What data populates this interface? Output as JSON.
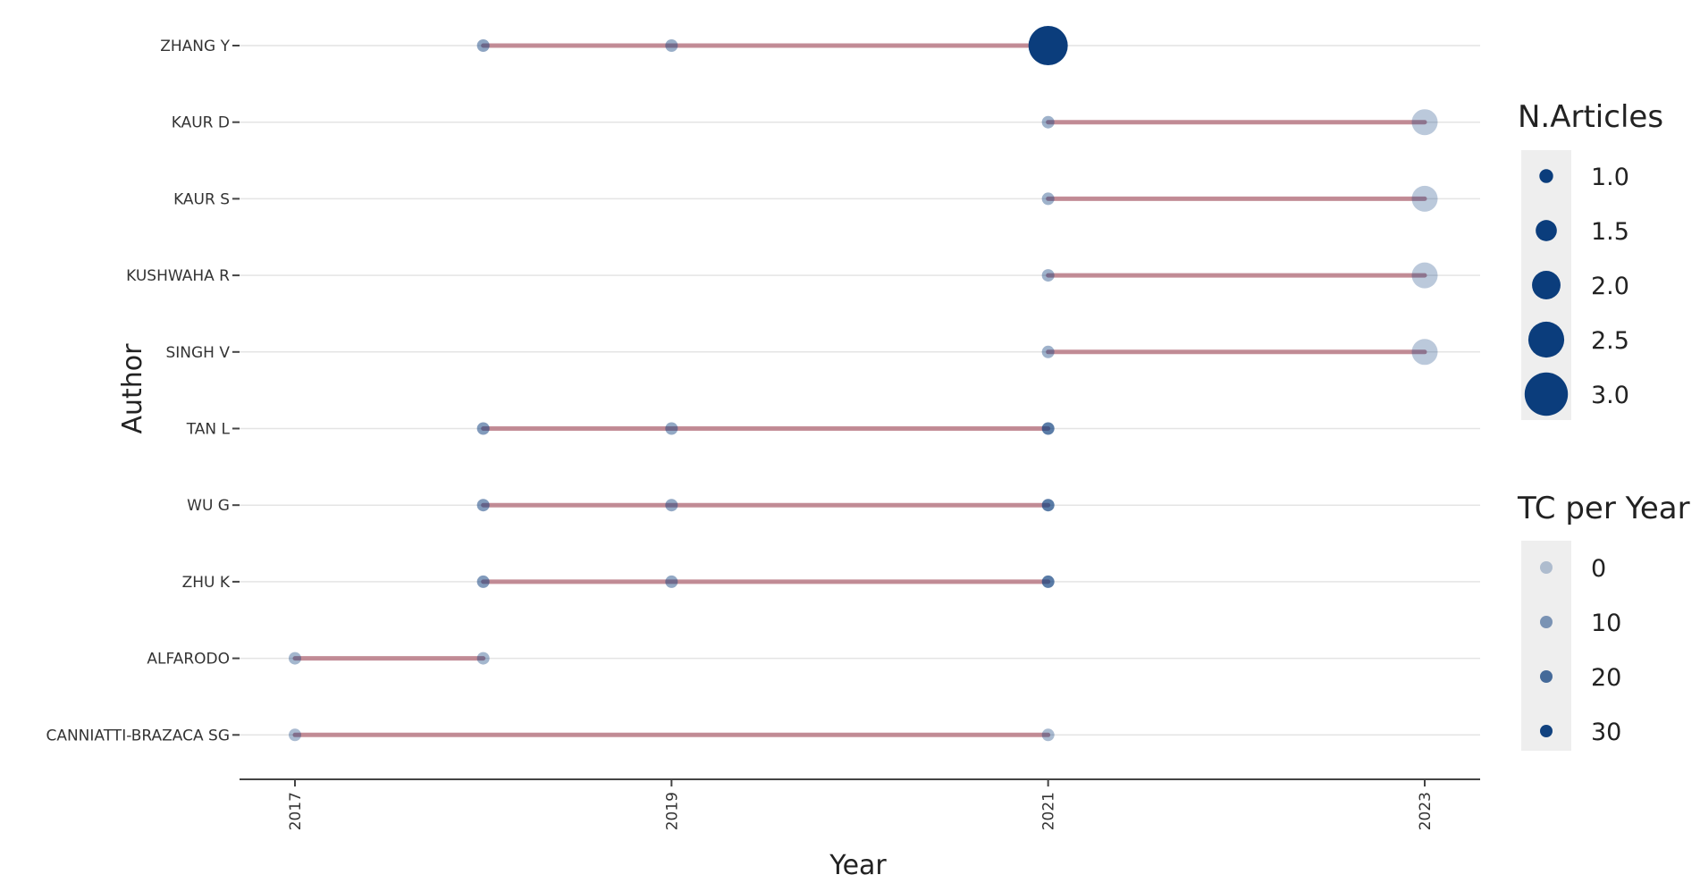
{
  "chart_data": {
    "type": "scatter",
    "xlabel": "Year",
    "ylabel": "Author",
    "x_ticks": [
      2017,
      2019,
      2021,
      2023
    ],
    "xlim": [
      2017,
      2023
    ],
    "authors": [
      "ZHANG Y",
      "KAUR D",
      "KAUR S",
      "KUSHWAHA R",
      "SINGH V",
      "TAN L",
      "WU G",
      "ZHU K",
      "ALFARODO",
      "CANNIATTI-BRAZACA SG"
    ],
    "lines": [
      {
        "author": "ZHANG Y",
        "from": 2018,
        "to": 2021
      },
      {
        "author": "KAUR D",
        "from": 2021,
        "to": 2023
      },
      {
        "author": "KAUR S",
        "from": 2021,
        "to": 2023
      },
      {
        "author": "KUSHWAHA R",
        "from": 2021,
        "to": 2023
      },
      {
        "author": "SINGH V",
        "from": 2021,
        "to": 2023
      },
      {
        "author": "TAN L",
        "from": 2018,
        "to": 2021
      },
      {
        "author": "WU G",
        "from": 2018,
        "to": 2021
      },
      {
        "author": "ZHU K",
        "from": 2018,
        "to": 2021
      },
      {
        "author": "ALFARODO",
        "from": 2017,
        "to": 2018
      },
      {
        "author": "CANNIATTI-BRAZACA SG",
        "from": 2017,
        "to": 2021
      }
    ],
    "points": [
      {
        "author": "ZHANG Y",
        "year": 2018,
        "articles": 1,
        "tc_per_year": 8
      },
      {
        "author": "ZHANG Y",
        "year": 2019,
        "articles": 1,
        "tc_per_year": 6
      },
      {
        "author": "ZHANG Y",
        "year": 2021,
        "articles": 3,
        "tc_per_year": 31
      },
      {
        "author": "KAUR D",
        "year": 2021,
        "articles": 1,
        "tc_per_year": 5
      },
      {
        "author": "KAUR D",
        "year": 2023,
        "articles": 2,
        "tc_per_year": 0
      },
      {
        "author": "KAUR S",
        "year": 2021,
        "articles": 1,
        "tc_per_year": 5
      },
      {
        "author": "KAUR S",
        "year": 2023,
        "articles": 2,
        "tc_per_year": 0
      },
      {
        "author": "KUSHWAHA R",
        "year": 2021,
        "articles": 1,
        "tc_per_year": 5
      },
      {
        "author": "KUSHWAHA R",
        "year": 2023,
        "articles": 2,
        "tc_per_year": 0
      },
      {
        "author": "SINGH V",
        "year": 2021,
        "articles": 1,
        "tc_per_year": 5
      },
      {
        "author": "SINGH V",
        "year": 2023,
        "articles": 2,
        "tc_per_year": 0
      },
      {
        "author": "TAN L",
        "year": 2018,
        "articles": 1,
        "tc_per_year": 10
      },
      {
        "author": "TAN L",
        "year": 2019,
        "articles": 1,
        "tc_per_year": 7
      },
      {
        "author": "TAN L",
        "year": 2021,
        "articles": 1,
        "tc_per_year": 17
      },
      {
        "author": "WU G",
        "year": 2018,
        "articles": 1,
        "tc_per_year": 10
      },
      {
        "author": "WU G",
        "year": 2019,
        "articles": 1,
        "tc_per_year": 7
      },
      {
        "author": "WU G",
        "year": 2021,
        "articles": 1,
        "tc_per_year": 17
      },
      {
        "author": "ZHU K",
        "year": 2018,
        "articles": 1,
        "tc_per_year": 10
      },
      {
        "author": "ZHU K",
        "year": 2019,
        "articles": 1,
        "tc_per_year": 7
      },
      {
        "author": "ZHU K",
        "year": 2021,
        "articles": 1,
        "tc_per_year": 17
      },
      {
        "author": "ALFARODO",
        "year": 2017,
        "articles": 1,
        "tc_per_year": 4
      },
      {
        "author": "ALFARODO",
        "year": 2018,
        "articles": 1,
        "tc_per_year": 4
      },
      {
        "author": "CANNIATTI-BRAZACA SG",
        "year": 2017,
        "articles": 1,
        "tc_per_year": 3
      },
      {
        "author": "CANNIATTI-BRAZACA SG",
        "year": 2021,
        "articles": 1,
        "tc_per_year": 3
      }
    ],
    "legend_articles": {
      "title": "N.Articles",
      "labels": [
        "1.0",
        "1.5",
        "2.0",
        "2.5",
        "3.0"
      ],
      "values": [
        1.0,
        1.5,
        2.0,
        2.5,
        3.0
      ]
    },
    "legend_tc": {
      "title": "TC per Year",
      "labels": [
        "0",
        "10",
        "20",
        "30"
      ],
      "values": [
        0,
        10,
        20,
        30
      ]
    },
    "legend_placement": "right",
    "grid": "horizontal",
    "colors": {
      "point": "#0b3d7c",
      "line": "#b97a86",
      "grid": "#e4e4e4",
      "axis": "#444444",
      "legend_key_bg": "#eeeeee"
    }
  }
}
